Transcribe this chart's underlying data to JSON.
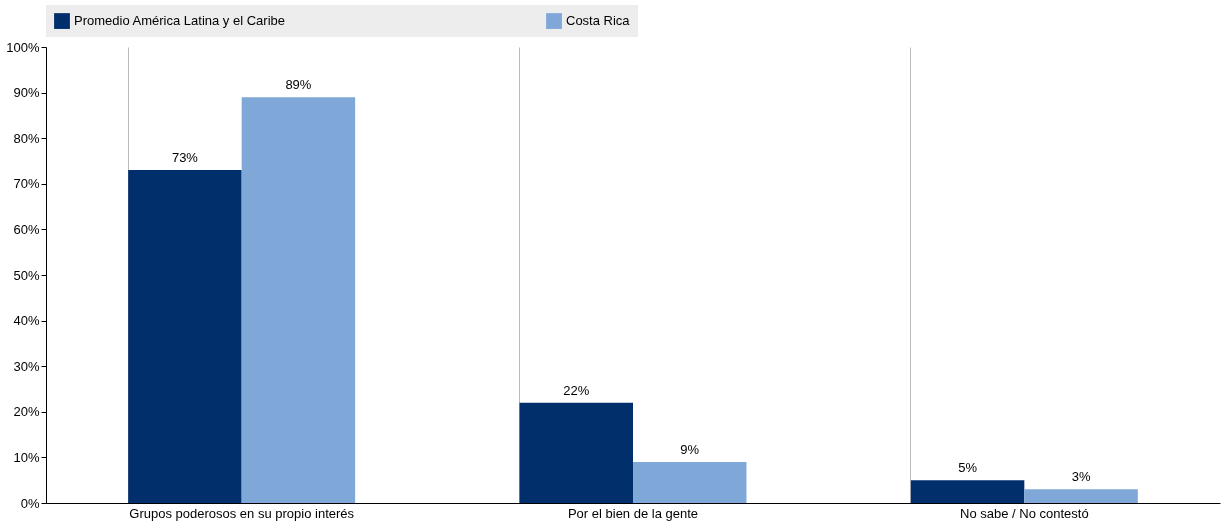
{
  "chart_data": {
    "type": "bar",
    "categories": [
      "Grupos poderosos en su propio interés",
      "Por el bien de la gente",
      "No sabe / No contestó"
    ],
    "series": [
      {
        "name": "Promedio América Latina y el Caribe",
        "color": "#002f6c",
        "values": [
          73,
          22,
          5
        ],
        "value_labels": [
          "73%",
          "22%",
          "5%"
        ]
      },
      {
        "name": "Costa Rica",
        "color": "#7fa8d9",
        "values": [
          89,
          9,
          3
        ],
        "value_labels": [
          "89%",
          "9%",
          "3%"
        ]
      }
    ],
    "ylim": [
      0,
      100
    ],
    "yticks": [
      {
        "value": 0,
        "label": "0%"
      },
      {
        "value": 10,
        "label": "10%"
      },
      {
        "value": 20,
        "label": "20%"
      },
      {
        "value": 30,
        "label": "30%"
      },
      {
        "value": 40,
        "label": "40%"
      },
      {
        "value": 50,
        "label": "50%"
      },
      {
        "value": 60,
        "label": "60%"
      },
      {
        "value": 70,
        "label": "70%"
      },
      {
        "value": 80,
        "label": "80%"
      },
      {
        "value": 90,
        "label": "90%"
      },
      {
        "value": 100,
        "label": "100%"
      }
    ],
    "grid": "x",
    "legend": "top"
  }
}
